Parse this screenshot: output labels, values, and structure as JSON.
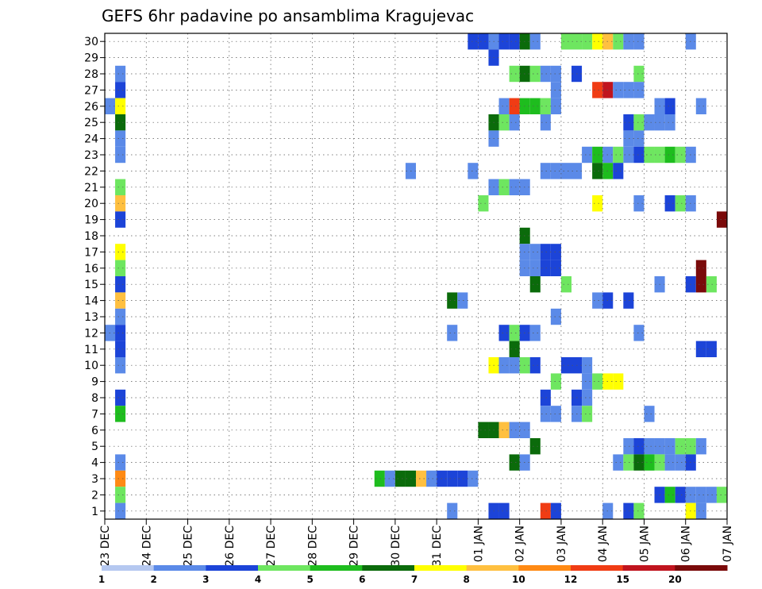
{
  "chart_data": {
    "type": "heatmap",
    "title": "GEFS 6hr padavine po ansamblima Kragujevac",
    "y_tick_labels": [
      "1",
      "2",
      "3",
      "4",
      "5",
      "6",
      "7",
      "8",
      "9",
      "10",
      "11",
      "12",
      "13",
      "14",
      "15",
      "16",
      "17",
      "18",
      "19",
      "20",
      "21",
      "22",
      "23",
      "24",
      "25",
      "26",
      "27",
      "28",
      "29",
      "30"
    ],
    "x_tick_labels": [
      "23 DEC",
      "24 DEC",
      "25 DEC",
      "26 DEC",
      "27 DEC",
      "28 DEC",
      "29 DEC",
      "30 DEC",
      "31 DEC",
      "01 JAN",
      "02 JAN",
      "03 JAN",
      "04 JAN",
      "05 JAN",
      "06 JAN",
      "07 JAN"
    ],
    "steps_per_day": 4,
    "n_steps": 60,
    "colorbar": {
      "labels": [
        "1",
        "2",
        "3",
        "4",
        "5",
        "6",
        "7",
        "8",
        "10",
        "12",
        "15",
        "20"
      ],
      "colors": [
        "#b5c8f0",
        "#5b8ae8",
        "#1c44d8",
        "#6ee660",
        "#1ebd1e",
        "#0b6b0b",
        "#ffff00",
        "#ffc040",
        "#ff8a14",
        "#f03c14",
        "#c0141e",
        "#7a0a0a"
      ]
    },
    "cells": [
      [
        30,
        35,
        2
      ],
      [
        30,
        36,
        2
      ],
      [
        30,
        37,
        1
      ],
      [
        30,
        38,
        2
      ],
      [
        30,
        39,
        2
      ],
      [
        30,
        40,
        5
      ],
      [
        30,
        41,
        1
      ],
      [
        30,
        44,
        3
      ],
      [
        30,
        45,
        3
      ],
      [
        30,
        46,
        3
      ],
      [
        30,
        47,
        6
      ],
      [
        30,
        48,
        7
      ],
      [
        30,
        49,
        3
      ],
      [
        30,
        50,
        1
      ],
      [
        30,
        51,
        1
      ],
      [
        30,
        56,
        1
      ],
      [
        29,
        37,
        2
      ],
      [
        28,
        1,
        1
      ],
      [
        28,
        39,
        3
      ],
      [
        28,
        40,
        5
      ],
      [
        28,
        41,
        3
      ],
      [
        28,
        42,
        1
      ],
      [
        28,
        43,
        1
      ],
      [
        28,
        45,
        2
      ],
      [
        28,
        51,
        3
      ],
      [
        27,
        1,
        2
      ],
      [
        27,
        43,
        1
      ],
      [
        27,
        47,
        9
      ],
      [
        27,
        48,
        10
      ],
      [
        27,
        49,
        1
      ],
      [
        27,
        50,
        1
      ],
      [
        27,
        51,
        1
      ],
      [
        26,
        0,
        1
      ],
      [
        26,
        1,
        6
      ],
      [
        26,
        38,
        1
      ],
      [
        26,
        39,
        9
      ],
      [
        26,
        40,
        4
      ],
      [
        26,
        41,
        4
      ],
      [
        26,
        42,
        3
      ],
      [
        26,
        43,
        1
      ],
      [
        26,
        53,
        1
      ],
      [
        26,
        54,
        2
      ],
      [
        26,
        57,
        1
      ],
      [
        25,
        1,
        5
      ],
      [
        25,
        37,
        5
      ],
      [
        25,
        38,
        3
      ],
      [
        25,
        39,
        1
      ],
      [
        25,
        42,
        1
      ],
      [
        25,
        50,
        2
      ],
      [
        25,
        51,
        3
      ],
      [
        25,
        52,
        1
      ],
      [
        25,
        53,
        1
      ],
      [
        25,
        54,
        1
      ],
      [
        24,
        1,
        1
      ],
      [
        24,
        37,
        1
      ],
      [
        24,
        50,
        1
      ],
      [
        24,
        51,
        1
      ],
      [
        23,
        1,
        1
      ],
      [
        23,
        46,
        1
      ],
      [
        23,
        47,
        4
      ],
      [
        23,
        48,
        1
      ],
      [
        23,
        49,
        3
      ],
      [
        23,
        50,
        1
      ],
      [
        23,
        51,
        2
      ],
      [
        23,
        52,
        3
      ],
      [
        23,
        53,
        3
      ],
      [
        23,
        54,
        4
      ],
      [
        23,
        55,
        3
      ],
      [
        23,
        56,
        1
      ],
      [
        22,
        29,
        1
      ],
      [
        22,
        35,
        1
      ],
      [
        22,
        42,
        1
      ],
      [
        22,
        43,
        1
      ],
      [
        22,
        44,
        1
      ],
      [
        22,
        45,
        1
      ],
      [
        22,
        47,
        5
      ],
      [
        22,
        48,
        4
      ],
      [
        22,
        49,
        2
      ],
      [
        21,
        1,
        3
      ],
      [
        21,
        37,
        1
      ],
      [
        21,
        38,
        3
      ],
      [
        21,
        39,
        1
      ],
      [
        21,
        40,
        1
      ],
      [
        20,
        1,
        7
      ],
      [
        20,
        36,
        3
      ],
      [
        20,
        47,
        6
      ],
      [
        20,
        51,
        1
      ],
      [
        20,
        54,
        2
      ],
      [
        20,
        55,
        3
      ],
      [
        20,
        56,
        1
      ],
      [
        19,
        1,
        2
      ],
      [
        19,
        59,
        11
      ],
      [
        18,
        40,
        5
      ],
      [
        17,
        1,
        6
      ],
      [
        17,
        40,
        1
      ],
      [
        17,
        41,
        1
      ],
      [
        17,
        42,
        2
      ],
      [
        17,
        43,
        2
      ],
      [
        16,
        1,
        3
      ],
      [
        16,
        40,
        1
      ],
      [
        16,
        41,
        1
      ],
      [
        16,
        42,
        2
      ],
      [
        16,
        43,
        2
      ],
      [
        16,
        57,
        11
      ],
      [
        15,
        1,
        2
      ],
      [
        15,
        41,
        5
      ],
      [
        15,
        44,
        3
      ],
      [
        15,
        53,
        1
      ],
      [
        15,
        56,
        2
      ],
      [
        15,
        57,
        11
      ],
      [
        15,
        58,
        3
      ],
      [
        14,
        1,
        7
      ],
      [
        14,
        33,
        5
      ],
      [
        14,
        34,
        1
      ],
      [
        14,
        47,
        1
      ],
      [
        14,
        48,
        2
      ],
      [
        14,
        50,
        2
      ],
      [
        13,
        1,
        1
      ],
      [
        13,
        43,
        1
      ],
      [
        12,
        0,
        1
      ],
      [
        12,
        1,
        2
      ],
      [
        12,
        33,
        1
      ],
      [
        12,
        38,
        2
      ],
      [
        12,
        39,
        3
      ],
      [
        12,
        40,
        2
      ],
      [
        12,
        41,
        1
      ],
      [
        12,
        51,
        1
      ],
      [
        11,
        1,
        2
      ],
      [
        11,
        39,
        5
      ],
      [
        11,
        57,
        2
      ],
      [
        11,
        58,
        2
      ],
      [
        10,
        1,
        1
      ],
      [
        10,
        37,
        6
      ],
      [
        10,
        38,
        1
      ],
      [
        10,
        39,
        1
      ],
      [
        10,
        40,
        3
      ],
      [
        10,
        41,
        2
      ],
      [
        10,
        44,
        2
      ],
      [
        10,
        45,
        2
      ],
      [
        10,
        46,
        1
      ],
      [
        9,
        43,
        3
      ],
      [
        9,
        46,
        1
      ],
      [
        9,
        47,
        3
      ],
      [
        9,
        48,
        6
      ],
      [
        9,
        49,
        6
      ],
      [
        8,
        1,
        2
      ],
      [
        8,
        42,
        2
      ],
      [
        8,
        45,
        2
      ],
      [
        8,
        46,
        1
      ],
      [
        7,
        1,
        4
      ],
      [
        7,
        42,
        1
      ],
      [
        7,
        43,
        1
      ],
      [
        7,
        45,
        1
      ],
      [
        7,
        46,
        3
      ],
      [
        7,
        52,
        1
      ],
      [
        6,
        36,
        5
      ],
      [
        6,
        37,
        5
      ],
      [
        6,
        38,
        7
      ],
      [
        6,
        39,
        1
      ],
      [
        6,
        40,
        1
      ],
      [
        5,
        41,
        5
      ],
      [
        5,
        50,
        1
      ],
      [
        5,
        51,
        2
      ],
      [
        5,
        52,
        1
      ],
      [
        5,
        53,
        1
      ],
      [
        5,
        54,
        1
      ],
      [
        5,
        55,
        3
      ],
      [
        5,
        56,
        3
      ],
      [
        5,
        57,
        1
      ],
      [
        4,
        1,
        1
      ],
      [
        4,
        39,
        5
      ],
      [
        4,
        40,
        1
      ],
      [
        4,
        49,
        1
      ],
      [
        4,
        50,
        3
      ],
      [
        4,
        51,
        5
      ],
      [
        4,
        52,
        4
      ],
      [
        4,
        53,
        3
      ],
      [
        4,
        54,
        1
      ],
      [
        4,
        55,
        1
      ],
      [
        4,
        56,
        2
      ],
      [
        3,
        1,
        8
      ],
      [
        3,
        26,
        4
      ],
      [
        3,
        27,
        1
      ],
      [
        3,
        28,
        5
      ],
      [
        3,
        29,
        5
      ],
      [
        3,
        30,
        7
      ],
      [
        3,
        31,
        1
      ],
      [
        3,
        32,
        2
      ],
      [
        3,
        33,
        2
      ],
      [
        3,
        34,
        2
      ],
      [
        3,
        35,
        1
      ],
      [
        2,
        1,
        3
      ],
      [
        2,
        53,
        2
      ],
      [
        2,
        54,
        4
      ],
      [
        2,
        55,
        2
      ],
      [
        2,
        56,
        1
      ],
      [
        2,
        57,
        1
      ],
      [
        2,
        58,
        1
      ],
      [
        2,
        59,
        3
      ],
      [
        1,
        1,
        1
      ],
      [
        1,
        33,
        1
      ],
      [
        1,
        37,
        2
      ],
      [
        1,
        38,
        2
      ],
      [
        1,
        42,
        9
      ],
      [
        1,
        43,
        2
      ],
      [
        1,
        48,
        1
      ],
      [
        1,
        50,
        2
      ],
      [
        1,
        51,
        3
      ],
      [
        1,
        56,
        6
      ],
      [
        1,
        57,
        1
      ]
    ]
  }
}
